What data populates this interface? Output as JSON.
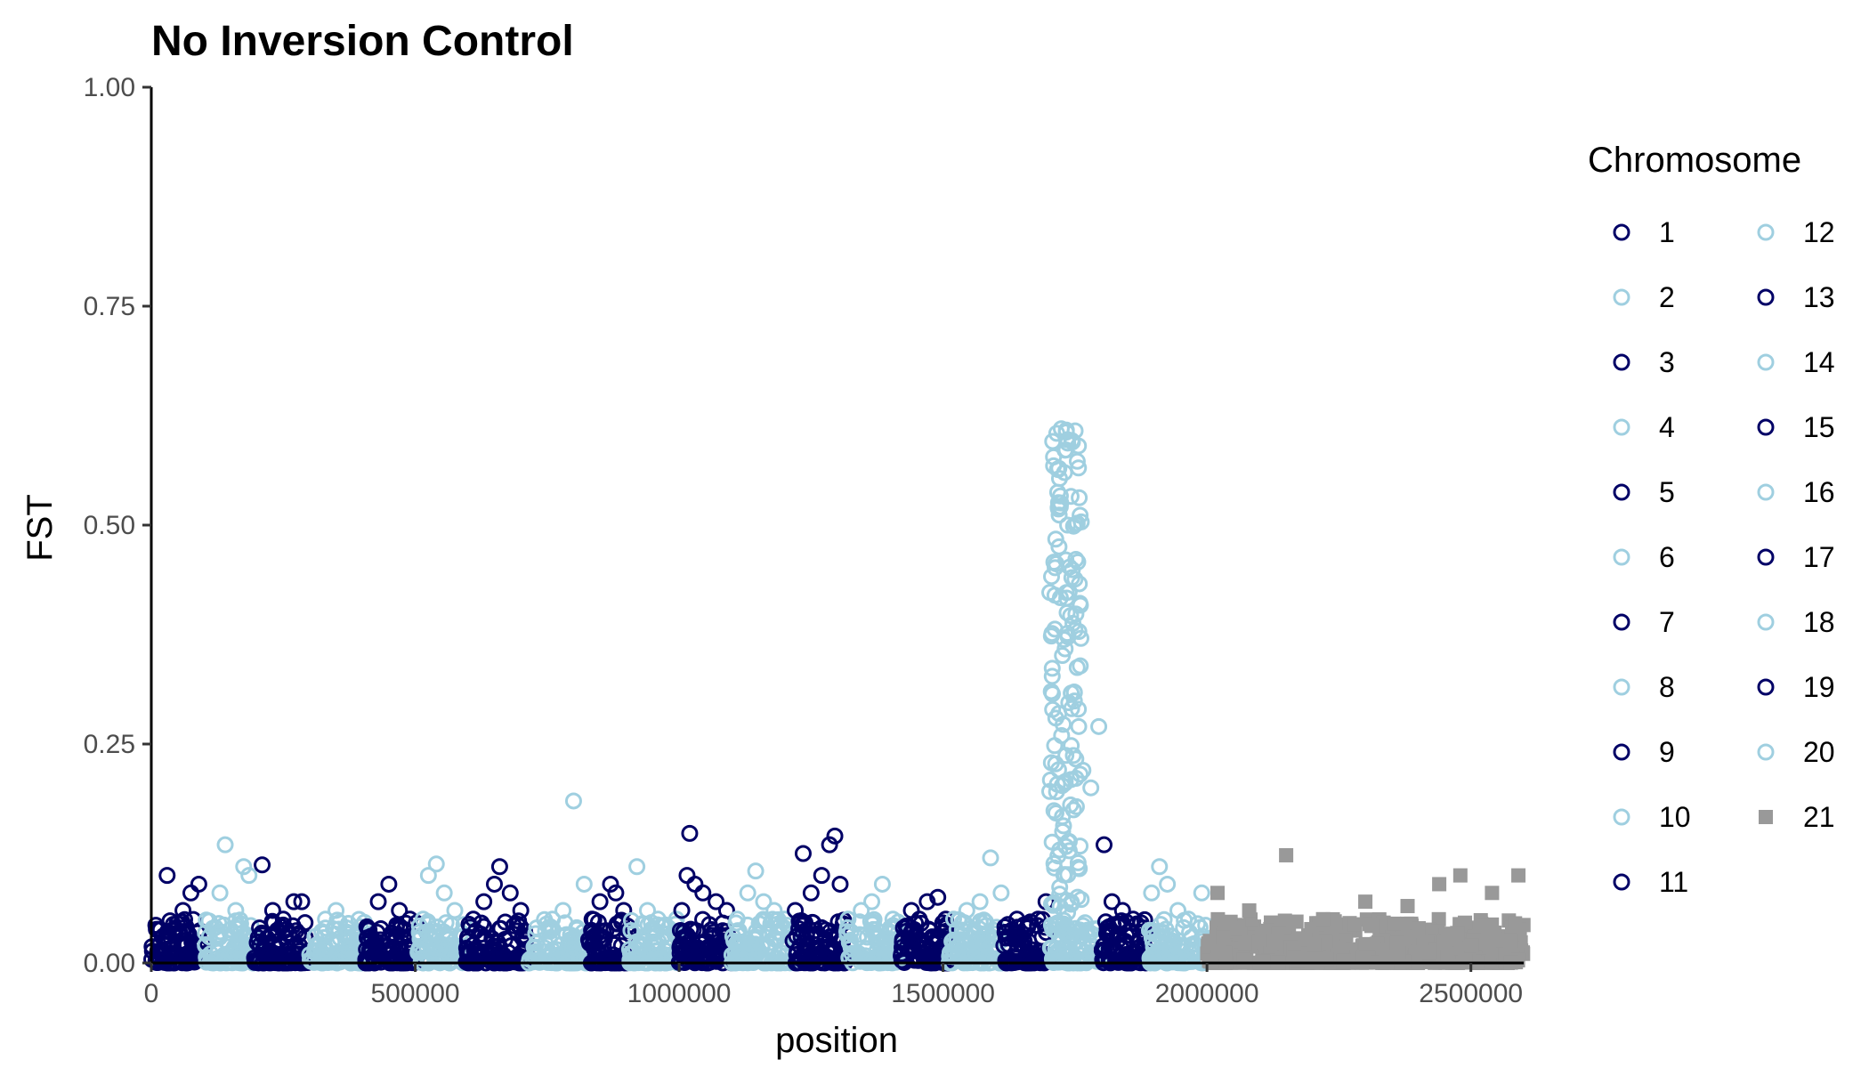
{
  "chart_data": {
    "type": "scatter",
    "title": "No Inversion Control",
    "xlabel": "position",
    "ylabel": "FST",
    "xlim": [
      0,
      2600000
    ],
    "ylim": [
      0,
      1.0
    ],
    "x_ticks": [
      {
        "value": 0,
        "label": "0"
      },
      {
        "value": 500000,
        "label": "500000"
      },
      {
        "value": 1000000,
        "label": "1000000"
      },
      {
        "value": 1500000,
        "label": "1500000"
      },
      {
        "value": 2000000,
        "label": "2000000"
      },
      {
        "value": 2500000,
        "label": "2500000"
      }
    ],
    "y_ticks": [
      {
        "value": 0,
        "label": "0.00"
      },
      {
        "value": 0.25,
        "label": "0.25"
      },
      {
        "value": 0.5,
        "label": "0.50"
      },
      {
        "value": 0.75,
        "label": "0.75"
      },
      {
        "value": 1.0,
        "label": "1.00"
      }
    ],
    "grid": false,
    "legend": {
      "title": "Chromosome",
      "placement": "right",
      "columns": 2
    },
    "colors": {
      "dark": "#000066",
      "light": "#9fcfe0",
      "grey": "#999999"
    },
    "series": [
      {
        "name": "1",
        "x": [
          15000,
          30000,
          45000,
          60000,
          75000,
          90000
        ],
        "y": [
          0.02,
          0.1,
          0.04,
          0.06,
          0.08,
          0.09
        ],
        "range": [
          0,
          100000
        ],
        "color": "dark",
        "marker": "circle"
      },
      {
        "name": "2",
        "x": [
          110000,
          130000,
          140000,
          160000,
          175000,
          185000
        ],
        "y": [
          0.03,
          0.08,
          0.135,
          0.06,
          0.11,
          0.1
        ],
        "range": [
          100000,
          195000
        ],
        "color": "light",
        "marker": "circle"
      },
      {
        "name": "3",
        "x": [
          205000,
          210000,
          230000,
          250000,
          270000,
          285000
        ],
        "y": [
          0.04,
          0.112,
          0.06,
          0.05,
          0.07,
          0.07
        ],
        "range": [
          195000,
          300000
        ],
        "color": "dark",
        "marker": "circle"
      },
      {
        "name": "4",
        "x": [
          310000,
          330000,
          350000,
          370000,
          390000
        ],
        "y": [
          0.03,
          0.05,
          0.06,
          0.04,
          0.03
        ],
        "range": [
          300000,
          405000
        ],
        "color": "light",
        "marker": "circle"
      },
      {
        "name": "5",
        "x": [
          410000,
          430000,
          450000,
          470000,
          490000
        ],
        "y": [
          0.04,
          0.07,
          0.09,
          0.06,
          0.05
        ],
        "range": [
          405000,
          505000
        ],
        "color": "dark",
        "marker": "circle"
      },
      {
        "name": "6",
        "x": [
          515000,
          525000,
          540000,
          555000,
          575000
        ],
        "y": [
          0.05,
          0.1,
          0.113,
          0.08,
          0.06
        ],
        "range": [
          505000,
          595000
        ],
        "color": "light",
        "marker": "circle"
      },
      {
        "name": "7",
        "x": [
          610000,
          630000,
          650000,
          660000,
          680000,
          700000
        ],
        "y": [
          0.05,
          0.07,
          0.09,
          0.11,
          0.08,
          0.06
        ],
        "range": [
          595000,
          715000
        ],
        "color": "dark",
        "marker": "circle"
      },
      {
        "name": "8",
        "x": [
          730000,
          760000,
          780000,
          800000,
          820000
        ],
        "y": [
          0.04,
          0.05,
          0.06,
          0.185,
          0.09
        ],
        "range": [
          715000,
          825000
        ],
        "color": "light",
        "marker": "circle"
      },
      {
        "name": "9",
        "x": [
          835000,
          850000,
          870000,
          880000,
          895000
        ],
        "y": [
          0.05,
          0.07,
          0.09,
          0.08,
          0.06
        ],
        "range": [
          825000,
          905000
        ],
        "color": "dark",
        "marker": "circle"
      },
      {
        "name": "10",
        "x": [
          920000,
          940000,
          960000,
          980000,
          995000
        ],
        "y": [
          0.11,
          0.06,
          0.05,
          0.04,
          0.05
        ],
        "range": [
          905000,
          1000000
        ],
        "color": "light",
        "marker": "circle"
      },
      {
        "name": "11",
        "x": [
          1005000,
          1015000,
          1020000,
          1030000,
          1045000,
          1070000,
          1090000
        ],
        "y": [
          0.06,
          0.1,
          0.148,
          0.09,
          0.08,
          0.07,
          0.06
        ],
        "range": [
          1000000,
          1100000
        ],
        "color": "dark",
        "marker": "circle"
      },
      {
        "name": "12",
        "x": [
          1110000,
          1130000,
          1145000,
          1160000,
          1180000,
          1200000
        ],
        "y": [
          0.05,
          0.08,
          0.105,
          0.07,
          0.06,
          0.05
        ],
        "range": [
          1100000,
          1215000
        ],
        "color": "light",
        "marker": "circle"
      },
      {
        "name": "13",
        "x": [
          1220000,
          1235000,
          1250000,
          1270000,
          1285000,
          1295000,
          1305000
        ],
        "y": [
          0.06,
          0.125,
          0.08,
          0.1,
          0.135,
          0.145,
          0.09
        ],
        "range": [
          1215000,
          1315000
        ],
        "color": "dark",
        "marker": "circle"
      },
      {
        "name": "14",
        "x": [
          1320000,
          1345000,
          1365000,
          1385000,
          1405000
        ],
        "y": [
          0.05,
          0.06,
          0.07,
          0.09,
          0.05
        ],
        "range": [
          1315000,
          1420000
        ],
        "color": "light",
        "marker": "circle"
      },
      {
        "name": "15",
        "x": [
          1425000,
          1440000,
          1455000,
          1470000,
          1490000,
          1505000
        ],
        "y": [
          0.04,
          0.06,
          0.05,
          0.07,
          0.075,
          0.05
        ],
        "range": [
          1420000,
          1510000
        ],
        "color": "dark",
        "marker": "circle"
      },
      {
        "name": "16",
        "x": [
          1520000,
          1545000,
          1570000,
          1590000,
          1610000
        ],
        "y": [
          0.05,
          0.06,
          0.07,
          0.12,
          0.08
        ],
        "range": [
          1510000,
          1615000
        ],
        "color": "light",
        "marker": "circle"
      },
      {
        "name": "17",
        "x": [
          1625000,
          1640000,
          1660000,
          1680000,
          1695000
        ],
        "y": [
          0.03,
          0.05,
          0.04,
          0.05,
          0.07
        ],
        "range": [
          1615000,
          1700000
        ],
        "color": "dark",
        "marker": "circle"
      },
      {
        "name": "18",
        "x": [
          1705000,
          1712000,
          1718000,
          1724000,
          1730000,
          1736000,
          1744000,
          1750000,
          1757000,
          1765000,
          1780000,
          1795000
        ],
        "y": [
          0.31,
          0.42,
          0.52,
          0.61,
          0.56,
          0.5,
          0.44,
          0.38,
          0.27,
          0.22,
          0.2,
          0.27
        ],
        "range": [
          1700000,
          1800000
        ],
        "color": "light",
        "marker": "circle"
      },
      {
        "name": "19",
        "x": [
          1805000,
          1820000,
          1840000,
          1860000,
          1880000
        ],
        "y": [
          0.135,
          0.07,
          0.06,
          0.05,
          0.04
        ],
        "range": [
          1800000,
          1890000
        ],
        "color": "dark",
        "marker": "circle"
      },
      {
        "name": "20",
        "x": [
          1895000,
          1910000,
          1925000,
          1945000,
          1965000,
          1990000
        ],
        "y": [
          0.08,
          0.11,
          0.09,
          0.06,
          0.05,
          0.08
        ],
        "range": [
          1890000,
          2000000
        ],
        "color": "light",
        "marker": "circle"
      },
      {
        "name": "21",
        "x": [
          2020000,
          2080000,
          2150000,
          2220000,
          2300000,
          2380000,
          2440000,
          2480000,
          2540000,
          2590000
        ],
        "y": [
          0.08,
          0.06,
          0.123,
          0.05,
          0.07,
          0.065,
          0.09,
          0.1,
          0.08,
          0.1
        ],
        "range": [
          2000000,
          2600000
        ],
        "color": "grey",
        "marker": "square"
      }
    ]
  }
}
